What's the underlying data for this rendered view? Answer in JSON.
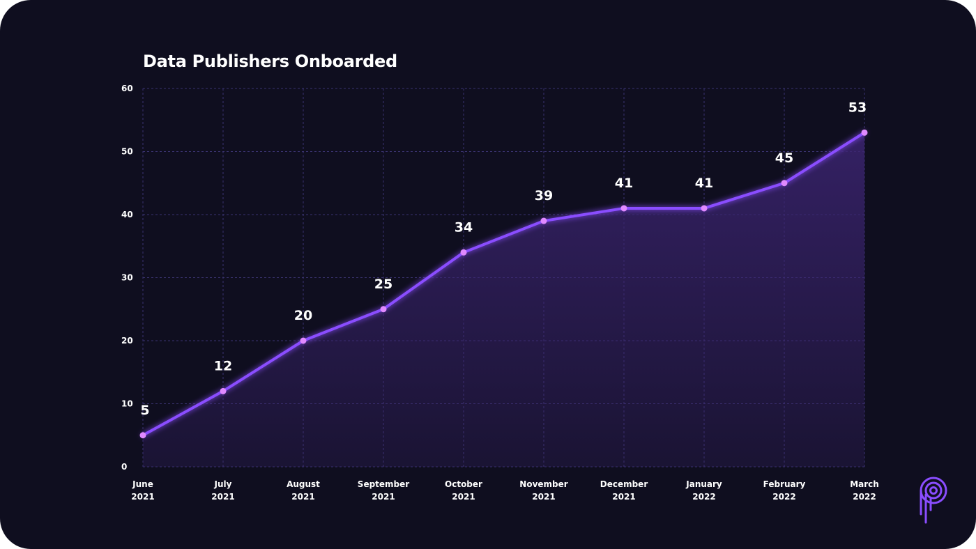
{
  "colors": {
    "background": "#0f0e1f",
    "grid": "#3a3370",
    "line": "#8a4dff",
    "point": "#e08aff",
    "area_top": "#3b2470",
    "text": "#ffffff",
    "logo": "#8a4dff"
  },
  "logo_icon": "p-brand-logo-icon",
  "chart_data": {
    "type": "area",
    "title": "Data Publishers Onboarded",
    "xlabel": "",
    "ylabel": "",
    "ylim": [
      0,
      60
    ],
    "yticks": [
      0,
      10,
      20,
      30,
      40,
      50,
      60
    ],
    "grid": true,
    "categories": [
      [
        "June",
        "2021"
      ],
      [
        "July",
        "2021"
      ],
      [
        "August",
        "2021"
      ],
      [
        "September",
        "2021"
      ],
      [
        "October",
        "2021"
      ],
      [
        "November",
        "2021"
      ],
      [
        "December",
        "2021"
      ],
      [
        "January",
        "2022"
      ],
      [
        "February",
        "2022"
      ],
      [
        "March",
        "2022"
      ]
    ],
    "values": [
      5,
      12,
      20,
      25,
      34,
      39,
      41,
      41,
      45,
      53
    ],
    "data_labels": [
      "5",
      "12",
      "20",
      "25",
      "34",
      "39",
      "41",
      "41",
      "45",
      "53"
    ]
  }
}
